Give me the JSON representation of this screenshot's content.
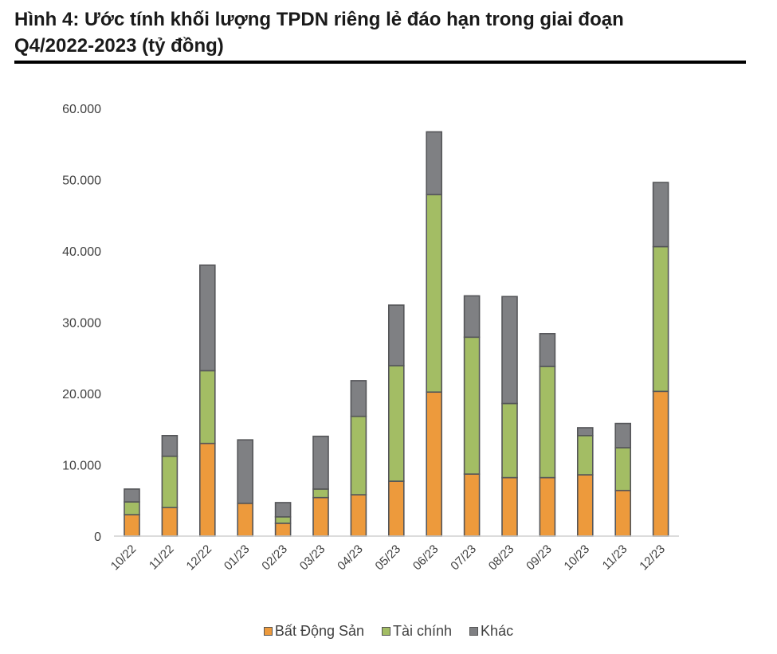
{
  "title_line1": "Hình 4: Ước tính khối lượng TPDN riêng lẻ đáo hạn trong giai đoạn",
  "title_line2": "Q4/2022-2023 (tỷ đồng)",
  "chart_data": {
    "type": "bar",
    "stacked": true,
    "title": "Hình 4: Ước tính khối lượng TPDN riêng lẻ đáo hạn trong giai đoạn Q4/2022-2023 (tỷ đồng)",
    "xlabel": "",
    "ylabel": "",
    "ylim": [
      0,
      60000
    ],
    "yticks": [
      0,
      10000,
      20000,
      30000,
      40000,
      50000,
      60000
    ],
    "ytick_labels": [
      "0",
      "10.000",
      "20.000",
      "30.000",
      "40.000",
      "50.000",
      "60.000"
    ],
    "grid": false,
    "legend_position": "bottom",
    "categories": [
      "10/22",
      "11/22",
      "12/22",
      "01/23",
      "02/23",
      "03/23",
      "04/23",
      "05/23",
      "06/23",
      "07/23",
      "08/23",
      "09/23",
      "10/23",
      "11/23",
      "12/23"
    ],
    "series": [
      {
        "name": "Bất Động Sản",
        "color": "#ED9A3C",
        "values": [
          3000,
          4000,
          13000,
          4600,
          1800,
          5400,
          5800,
          7700,
          20200,
          8700,
          8200,
          8200,
          8600,
          6400,
          20300
        ]
      },
      {
        "name": "Tài chính",
        "color": "#A3BD64",
        "values": [
          1800,
          7200,
          10200,
          0,
          900,
          1200,
          11000,
          16200,
          27700,
          19200,
          10400,
          15600,
          5500,
          6000,
          20300
        ]
      },
      {
        "name": "Khác",
        "color": "#7F8083",
        "values": [
          1800,
          2900,
          14800,
          8900,
          2000,
          7400,
          5000,
          8500,
          8800,
          5800,
          15000,
          4600,
          1100,
          3400,
          9000
        ]
      }
    ]
  }
}
